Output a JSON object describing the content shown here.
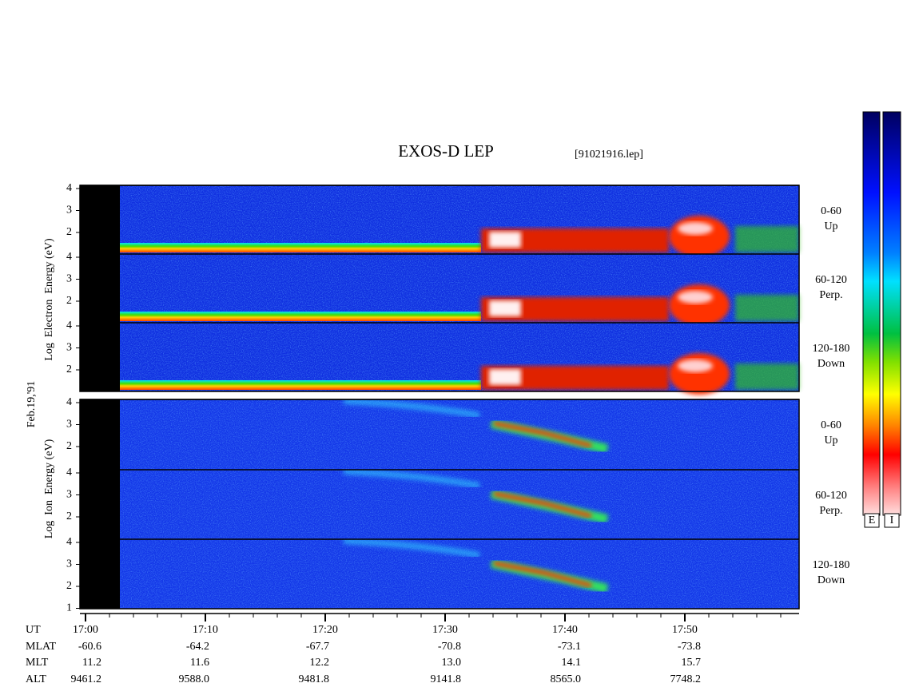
{
  "header": {
    "title": "EXOS-D LEP",
    "file": "[91021916.lep]"
  },
  "date": "Feb.19,'91",
  "electron": {
    "axis_label": "Log  Electron  Energy (eV)",
    "panels": [
      {
        "yticks": [
          "4",
          "3",
          "2"
        ],
        "angle": "0-60",
        "direction": "Up"
      },
      {
        "yticks": [
          "4",
          "3",
          "2"
        ],
        "angle": "60-120",
        "direction": "Perp."
      },
      {
        "yticks": [
          "4",
          "3",
          "2"
        ],
        "angle": "120-180",
        "direction": "Down"
      }
    ]
  },
  "ion": {
    "axis_label": "Log  Ion  Energy (eV)",
    "panels": [
      {
        "yticks": [
          "4",
          "3",
          "2"
        ],
        "angle": "0-60",
        "direction": "Up"
      },
      {
        "yticks": [
          "4",
          "3",
          "2"
        ],
        "angle": "60-120",
        "direction": "Perp."
      },
      {
        "yticks": [
          "4",
          "3",
          "2",
          "1"
        ],
        "angle": "120-180",
        "direction": "Down"
      }
    ]
  },
  "colorbars": [
    "E",
    "I"
  ],
  "orbit": {
    "row_labels": [
      "UT",
      "MLAT",
      "MLT",
      "ALT"
    ],
    "columns": [
      [
        "17:00",
        "-60.6",
        "11.2",
        "9461.2"
      ],
      [
        "17:10",
        "-64.2",
        "11.6",
        "9588.0"
      ],
      [
        "17:20",
        "-67.7",
        "12.2",
        "9481.8"
      ],
      [
        "17:30",
        "-70.8",
        "13.0",
        "9141.8"
      ],
      [
        "17:40",
        "-73.1",
        "14.1",
        "8565.0"
      ],
      [
        "17:50",
        "-73.8",
        "15.7",
        "7748.2"
      ]
    ]
  }
}
